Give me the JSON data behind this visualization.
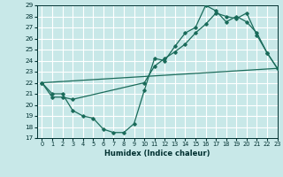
{
  "xlabel": "Humidex (Indice chaleur)",
  "bg_color": "#c8e8e8",
  "grid_color": "#ffffff",
  "line_color": "#1a6b5a",
  "ylim": [
    17,
    29
  ],
  "xlim": [
    -0.5,
    23
  ],
  "yticks": [
    17,
    18,
    19,
    20,
    21,
    22,
    23,
    24,
    25,
    26,
    27,
    28,
    29
  ],
  "xticks": [
    0,
    1,
    2,
    3,
    4,
    5,
    6,
    7,
    8,
    9,
    10,
    11,
    12,
    13,
    14,
    15,
    16,
    17,
    18,
    19,
    20,
    21,
    22,
    23
  ],
  "series1_x": [
    0,
    1,
    2,
    3,
    4,
    5,
    6,
    7,
    8,
    9,
    10,
    11,
    12,
    13,
    14,
    15,
    16,
    17,
    18,
    19,
    20,
    21,
    22,
    23
  ],
  "series1_y": [
    22,
    21,
    21,
    19.5,
    19,
    18.8,
    17.8,
    17.5,
    17.5,
    18.3,
    21.3,
    24.2,
    24.0,
    25.3,
    26.5,
    27.0,
    29.0,
    28.5,
    27.5,
    28.0,
    27.5,
    26.5,
    24.7,
    23.3
  ],
  "series2_x": [
    0,
    1,
    2,
    3,
    10,
    11,
    12,
    13,
    14,
    15,
    16,
    17,
    18,
    19,
    20,
    21,
    22,
    23
  ],
  "series2_y": [
    22,
    20.7,
    20.7,
    20.5,
    22.0,
    23.5,
    24.2,
    24.8,
    25.5,
    26.5,
    27.3,
    28.3,
    28.0,
    27.8,
    28.3,
    26.3,
    24.7,
    23.3
  ],
  "series3_x": [
    0,
    23
  ],
  "series3_y": [
    22,
    23.3
  ]
}
